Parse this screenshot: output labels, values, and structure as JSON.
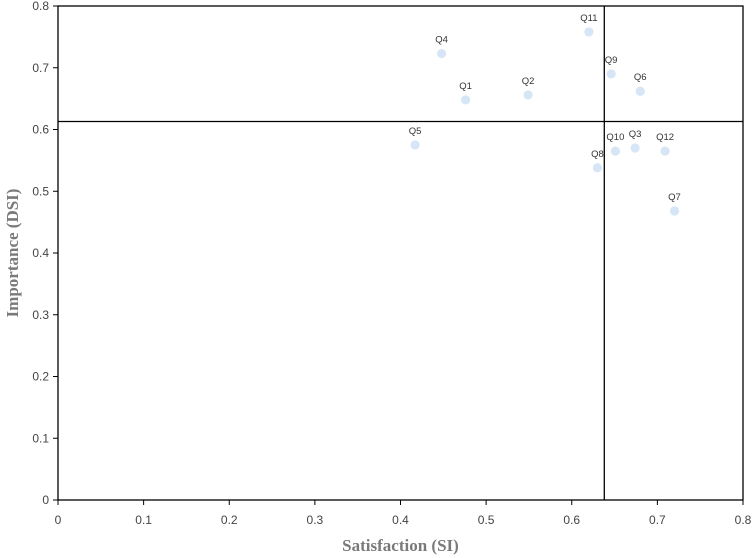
{
  "chart_data": {
    "type": "scatter",
    "title": "",
    "xlabel": "Satisfaction (SI)",
    "ylabel": "Importance (DSI)",
    "xlim": [
      0,
      0.8
    ],
    "ylim": [
      0,
      0.8
    ],
    "x_ticks": [
      "0",
      "0.1",
      "0.2",
      "0.3",
      "0.4",
      "0.5",
      "0.6",
      "0.7",
      "0.8"
    ],
    "y_ticks": [
      "0",
      "0.1",
      "0.2",
      "0.3",
      "0.4",
      "0.5",
      "0.6",
      "0.7",
      "0.8"
    ],
    "grid": false,
    "reference_lines": {
      "x": 0.638,
      "y": 0.613
    },
    "point_color": "#d6e6f7",
    "points": [
      {
        "label": "Q1",
        "x": 0.476,
        "y": 0.648
      },
      {
        "label": "Q2",
        "x": 0.549,
        "y": 0.656
      },
      {
        "label": "Q3",
        "x": 0.674,
        "y": 0.57
      },
      {
        "label": "Q4",
        "x": 0.448,
        "y": 0.723
      },
      {
        "label": "Q5",
        "x": 0.417,
        "y": 0.575
      },
      {
        "label": "Q6",
        "x": 0.68,
        "y": 0.662
      },
      {
        "label": "Q7",
        "x": 0.72,
        "y": 0.468
      },
      {
        "label": "Q8",
        "x": 0.63,
        "y": 0.538
      },
      {
        "label": "Q9",
        "x": 0.646,
        "y": 0.69
      },
      {
        "label": "Q10",
        "x": 0.651,
        "y": 0.565
      },
      {
        "label": "Q11",
        "x": 0.62,
        "y": 0.758
      },
      {
        "label": "Q12",
        "x": 0.709,
        "y": 0.565
      }
    ]
  }
}
